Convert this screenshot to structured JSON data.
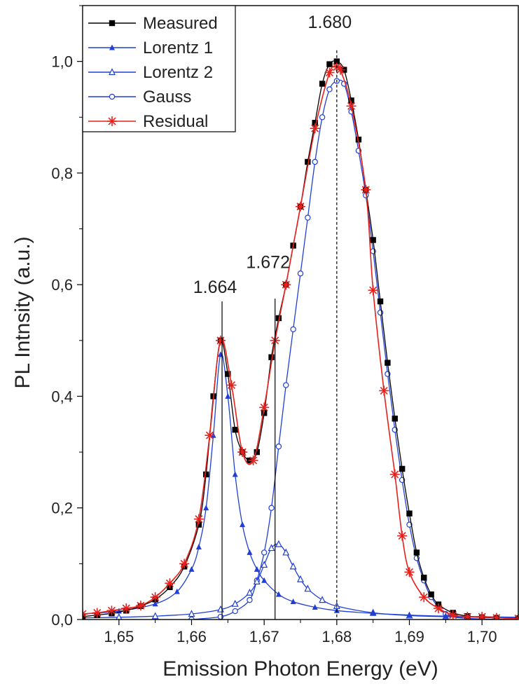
{
  "chart_data": {
    "type": "line",
    "title": "",
    "xlabel": "Emission Photon Energy (eV)",
    "ylabel": "PL Intnsity (a.u.)",
    "xlim": [
      1.645,
      1.705
    ],
    "ylim": [
      0.0,
      1.1
    ],
    "x_ticks": [
      {
        "value": 1.65,
        "label": "1,65"
      },
      {
        "value": 1.66,
        "label": "1,66"
      },
      {
        "value": 1.67,
        "label": "1,67"
      },
      {
        "value": 1.68,
        "label": "1,68"
      },
      {
        "value": 1.69,
        "label": "1,69"
      },
      {
        "value": 1.7,
        "label": "1,70"
      }
    ],
    "y_ticks": [
      {
        "value": 0.0,
        "label": "0,0"
      },
      {
        "value": 0.2,
        "label": "0,2"
      },
      {
        "value": 0.4,
        "label": "0,4"
      },
      {
        "value": 0.6,
        "label": "0,6"
      },
      {
        "value": 0.8,
        "label": "0,8"
      },
      {
        "value": 1.0,
        "label": "1,0"
      }
    ],
    "grid": false,
    "legend_position": "top-left",
    "series": [
      {
        "name": "Measured",
        "color": "#000000",
        "marker": "filled-square",
        "x": [
          1.645,
          1.647,
          1.649,
          1.651,
          1.653,
          1.655,
          1.657,
          1.659,
          1.661,
          1.662,
          1.663,
          1.664,
          1.665,
          1.666,
          1.667,
          1.668,
          1.669,
          1.67,
          1.671,
          1.672,
          1.673,
          1.674,
          1.675,
          1.676,
          1.677,
          1.678,
          1.679,
          1.68,
          1.681,
          1.682,
          1.683,
          1.684,
          1.685,
          1.686,
          1.687,
          1.688,
          1.689,
          1.69,
          1.691,
          1.692,
          1.693,
          1.694,
          1.696,
          1.698,
          1.7,
          1.702,
          1.705
        ],
        "y": [
          0.005,
          0.008,
          0.011,
          0.016,
          0.024,
          0.036,
          0.058,
          0.095,
          0.17,
          0.26,
          0.4,
          0.5,
          0.44,
          0.34,
          0.3,
          0.285,
          0.3,
          0.37,
          0.47,
          0.54,
          0.6,
          0.67,
          0.74,
          0.82,
          0.89,
          0.96,
          0.995,
          1.0,
          0.985,
          0.93,
          0.86,
          0.77,
          0.68,
          0.57,
          0.46,
          0.36,
          0.27,
          0.19,
          0.12,
          0.075,
          0.045,
          0.027,
          0.012,
          0.006,
          0.004,
          0.003,
          0.002
        ]
      },
      {
        "name": "Lorentz 1",
        "color": "#1f3fd6",
        "marker": "filled-triangle",
        "x": [
          1.645,
          1.65,
          1.655,
          1.658,
          1.66,
          1.661,
          1.662,
          1.663,
          1.664,
          1.665,
          1.666,
          1.667,
          1.668,
          1.669,
          1.67,
          1.672,
          1.674,
          1.677,
          1.68,
          1.685,
          1.69,
          1.695,
          1.7,
          1.705
        ],
        "y": [
          0.01,
          0.015,
          0.028,
          0.05,
          0.09,
          0.13,
          0.2,
          0.33,
          0.475,
          0.4,
          0.26,
          0.17,
          0.12,
          0.09,
          0.07,
          0.045,
          0.032,
          0.022,
          0.016,
          0.011,
          0.008,
          0.006,
          0.005,
          0.004
        ]
      },
      {
        "name": "Lorentz 2",
        "color": "#1f3fd6",
        "marker": "open-triangle",
        "x": [
          1.645,
          1.65,
          1.655,
          1.66,
          1.664,
          1.666,
          1.668,
          1.669,
          1.67,
          1.671,
          1.672,
          1.673,
          1.674,
          1.675,
          1.676,
          1.678,
          1.68,
          1.685,
          1.69,
          1.695,
          1.7,
          1.705
        ],
        "y": [
          0.003,
          0.004,
          0.006,
          0.01,
          0.018,
          0.028,
          0.048,
          0.068,
          0.098,
          0.128,
          0.135,
          0.12,
          0.095,
          0.072,
          0.055,
          0.035,
          0.024,
          0.012,
          0.007,
          0.005,
          0.004,
          0.003
        ]
      },
      {
        "name": "Gauss",
        "color": "#1f3fd6",
        "marker": "open-circle",
        "x": [
          1.66,
          1.664,
          1.666,
          1.668,
          1.669,
          1.67,
          1.671,
          1.672,
          1.673,
          1.674,
          1.675,
          1.676,
          1.677,
          1.678,
          1.679,
          1.68,
          1.681,
          1.682,
          1.683,
          1.684,
          1.685,
          1.686,
          1.687,
          1.688,
          1.689,
          1.69,
          1.691,
          1.692,
          1.693,
          1.695,
          1.698,
          1.705
        ],
        "y": [
          0.0,
          0.005,
          0.015,
          0.035,
          0.07,
          0.12,
          0.2,
          0.31,
          0.42,
          0.52,
          0.62,
          0.72,
          0.82,
          0.9,
          0.95,
          0.965,
          0.96,
          0.91,
          0.84,
          0.76,
          0.66,
          0.55,
          0.44,
          0.34,
          0.25,
          0.17,
          0.11,
          0.07,
          0.04,
          0.01,
          0.002,
          0.0
        ]
      },
      {
        "name": "Residual",
        "color": "#e8201c",
        "marker": "asterisk",
        "x": [
          1.645,
          1.647,
          1.649,
          1.651,
          1.653,
          1.655,
          1.657,
          1.659,
          1.661,
          1.6625,
          1.664,
          1.6655,
          1.667,
          1.6685,
          1.67,
          1.6715,
          1.673,
          1.675,
          1.677,
          1.679,
          1.68,
          1.6805,
          1.682,
          1.684,
          1.685,
          1.6865,
          1.688,
          1.689,
          1.69,
          1.692,
          1.694,
          1.696,
          1.698,
          1.7,
          1.702,
          1.705
        ],
        "y": [
          0.01,
          0.012,
          0.016,
          0.02,
          0.025,
          0.04,
          0.065,
          0.1,
          0.18,
          0.33,
          0.5,
          0.42,
          0.3,
          0.285,
          0.38,
          0.5,
          0.6,
          0.74,
          0.88,
          0.98,
          0.99,
          0.985,
          0.92,
          0.77,
          0.59,
          0.41,
          0.26,
          0.15,
          0.085,
          0.04,
          0.02,
          0.008,
          0.005,
          0.005,
          0.003,
          0.002
        ]
      }
    ],
    "annotations": [
      {
        "text": "1.664",
        "x": 1.6642,
        "y_label": 0.585,
        "y_line_top": 0.57,
        "line_style": "solid"
      },
      {
        "text": "1.672",
        "x": 1.6715,
        "y_label": 0.63,
        "y_line_top": 0.575,
        "line_style": "solid"
      },
      {
        "text": "1.680",
        "x": 1.68,
        "y_label": 1.06,
        "y_line_top": 1.02,
        "line_style": "dashed"
      }
    ]
  }
}
